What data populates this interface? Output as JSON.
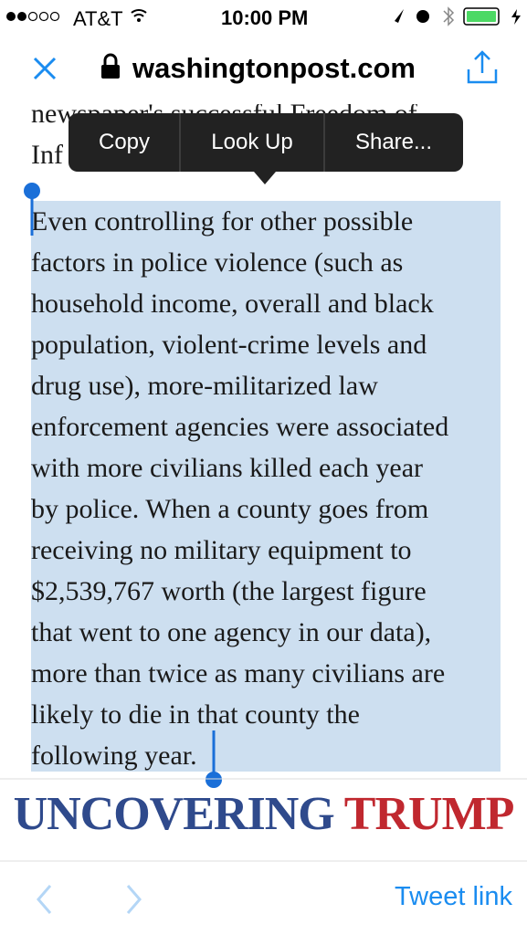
{
  "status_bar": {
    "carrier": "AT&T",
    "time": "10:00 PM"
  },
  "url_bar": {
    "domain": "washingtonpost.com"
  },
  "article": {
    "preceding_lines": [
      "newspaper's successful Freedom of",
      "Inf"
    ],
    "selected_lines": [
      "Even controlling for other possible",
      "factors in police violence (such as",
      "household income, overall and black",
      "population, violent-crime levels and",
      "drug use), more-militarized law",
      "enforcement agencies were associated",
      "with more civilians killed each year",
      "by police. When a county goes from",
      "receiving no military equipment to",
      "$2,539,767 worth (the largest figure",
      "that went to one agency in our data),",
      "more than twice as many civilians are",
      "likely to die in that county the",
      "following year."
    ]
  },
  "context_menu": {
    "items": [
      "Copy",
      "Look Up",
      "Share..."
    ]
  },
  "banner": {
    "first_word": "UNCOVERING",
    "second_word": "TRUMP"
  },
  "toolbar": {
    "action": "Tweet link"
  }
}
